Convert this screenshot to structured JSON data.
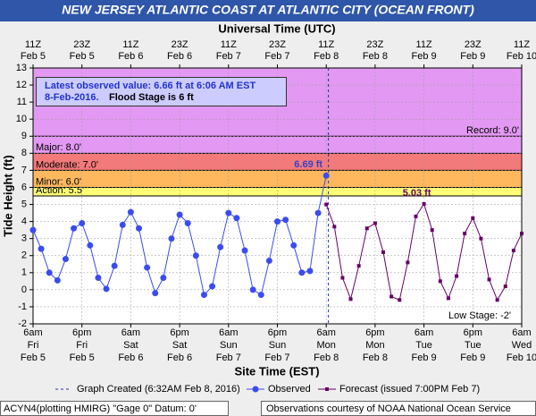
{
  "chart_data": {
    "type": "line",
    "title": "NEW JERSEY ATLANTIC COAST AT ATLANTIC CITY (OCEAN FRONT)",
    "top_axis_label": "Universal Time (UTC)",
    "y_label": "Tide Height (ft)",
    "x_label": "Site Time (EST)",
    "ylim": [
      -2,
      13
    ],
    "yticks": [
      -2,
      -1,
      0,
      1,
      2,
      3,
      4,
      5,
      6,
      7,
      8,
      9,
      10,
      11,
      12,
      13
    ],
    "xlim": [
      0,
      120
    ],
    "xticks": [
      {
        "value": 0,
        "label": "6am",
        "day": "Fri",
        "date": "Feb 5"
      },
      {
        "value": 12,
        "label": "6pm",
        "day": "Fri",
        "date": "Feb 5"
      },
      {
        "value": 24,
        "label": "6am",
        "day": "Sat",
        "date": "Feb 6"
      },
      {
        "value": 36,
        "label": "6pm",
        "day": "Sat",
        "date": "Feb 6"
      },
      {
        "value": 48,
        "label": "6am",
        "day": "Sun",
        "date": "Feb 7"
      },
      {
        "value": 60,
        "label": "6pm",
        "day": "Sun",
        "date": "Feb 7"
      },
      {
        "value": 72,
        "label": "6am",
        "day": "Mon",
        "date": "Feb 8"
      },
      {
        "value": 84,
        "label": "6pm",
        "day": "Mon",
        "date": "Feb 8"
      },
      {
        "value": 96,
        "label": "6am",
        "day": "Tue",
        "date": "Feb 9"
      },
      {
        "value": 108,
        "label": "6pm",
        "day": "Tue",
        "date": "Feb 9"
      },
      {
        "value": 120,
        "label": "6am",
        "day": "Wed",
        "date": "Feb 10"
      }
    ],
    "x2ticks": [
      {
        "value": 0,
        "label": "11Z",
        "date": "Feb 5"
      },
      {
        "value": 12,
        "label": "23Z",
        "date": "Feb 5"
      },
      {
        "value": 24,
        "label": "11Z",
        "date": "Feb 6"
      },
      {
        "value": 36,
        "label": "23Z",
        "date": "Feb 6"
      },
      {
        "value": 48,
        "label": "11Z",
        "date": "Feb 7"
      },
      {
        "value": 60,
        "label": "23Z",
        "date": "Feb 7"
      },
      {
        "value": 72,
        "label": "11Z",
        "date": "Feb 8"
      },
      {
        "value": 84,
        "label": "23Z",
        "date": "Feb 8"
      },
      {
        "value": 96,
        "label": "11Z",
        "date": "Feb 9"
      },
      {
        "value": 108,
        "label": "23Z",
        "date": "Feb 9"
      },
      {
        "value": 120,
        "label": "11Z",
        "date": "Feb 10"
      }
    ],
    "grid": true,
    "flood_categories": [
      {
        "label": "Action: 5.5'",
        "value": 5.5,
        "color": "#ffff66"
      },
      {
        "label": "Minor: 6.0'",
        "value": 6,
        "color": "#ffb04c"
      },
      {
        "label": "Moderate: 7.0'",
        "value": 7,
        "color": "#f26b6b"
      },
      {
        "label": "Major: 8.0'",
        "value": 8,
        "color": "#e08ef2"
      }
    ],
    "record": {
      "label": "Record: 9.0'",
      "value": 9
    },
    "low_stage": {
      "label": "Low Stage: -2'",
      "value": -2
    },
    "info_box": {
      "line1": "Latest observed value: 6.66 ft at 6:06 AM EST",
      "line2": "8-Feb-2016.",
      "line2b": "Flood Stage is 6 ft"
    },
    "created": {
      "value": 72.53,
      "label": "Graph Created (6:32AM Feb 8, 2016)"
    },
    "series": [
      {
        "name": "Observed",
        "color": "#3a4cf0",
        "x": [
          0,
          2,
          4,
          6,
          8,
          10,
          12,
          14,
          16,
          18,
          20,
          22,
          24,
          26,
          28,
          30,
          32,
          34,
          36,
          38,
          40,
          42,
          44,
          46,
          48,
          50,
          52,
          54,
          56,
          58,
          60,
          62,
          64,
          66,
          68,
          70,
          72
        ],
        "values": [
          3.5,
          2.4,
          1.0,
          0.55,
          1.8,
          3.6,
          3.9,
          2.6,
          0.7,
          0.05,
          1.4,
          3.8,
          4.55,
          3.6,
          1.3,
          -0.2,
          0.7,
          3.0,
          4.4,
          3.9,
          2.0,
          -0.3,
          0.2,
          2.5,
          4.5,
          4.2,
          2.3,
          0.0,
          -0.3,
          1.7,
          4.0,
          4.1,
          2.6,
          1.0,
          1.1,
          4.5,
          6.69
        ],
        "annotation": "6.69 ft"
      },
      {
        "name": "Forecast (issued 7:00PM Feb 7)",
        "color": "#660066",
        "x": [
          72,
          74,
          76,
          78,
          80,
          82,
          84,
          86,
          88,
          90,
          92,
          94,
          96,
          98,
          100,
          102,
          104,
          106,
          108,
          110,
          112,
          114,
          116,
          118,
          120
        ],
        "values": [
          5.0,
          3.7,
          0.7,
          -0.55,
          1.4,
          3.6,
          3.9,
          2.2,
          -0.4,
          -0.6,
          1.6,
          4.3,
          5.03,
          3.5,
          0.5,
          -0.5,
          0.8,
          3.3,
          4.2,
          3.0,
          0.6,
          -0.6,
          0.2,
          2.3,
          3.3
        ],
        "annotation": "5.03 ft"
      }
    ],
    "footer_left": "ACYN4(plotting HMIRG) \"Gage 0\" Datum: 0'",
    "footer_right": "Observations courtesy of NOAA National Ocean Service"
  }
}
